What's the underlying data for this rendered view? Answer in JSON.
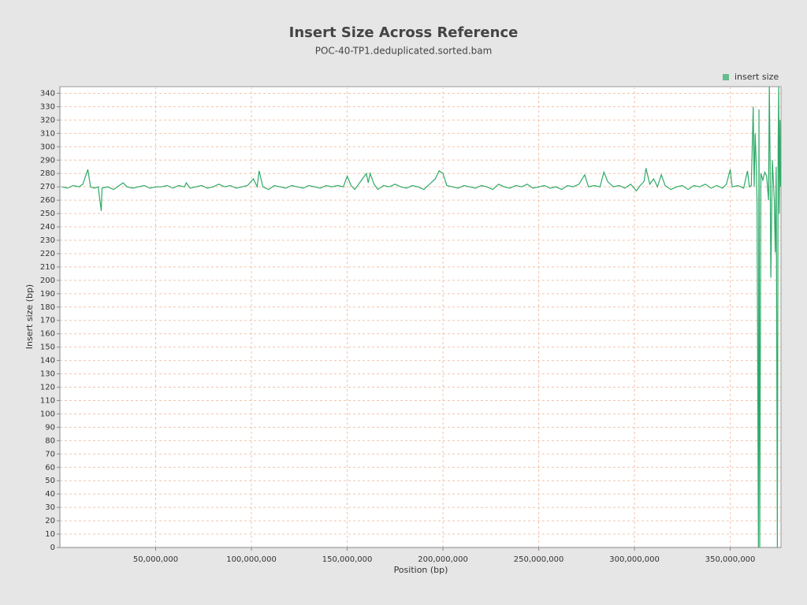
{
  "chart_data": {
    "type": "line",
    "title": "Insert Size Across Reference",
    "subtitle": "POC-40-TP1.deduplicated.sorted.bam",
    "x_label": "Position (bp)",
    "y_label": "Insert size (bp)",
    "xlim": [
      0,
      376500000
    ],
    "ylim": [
      0,
      345
    ],
    "xticks": [
      {
        "value": 50000000,
        "label": "50,000,000"
      },
      {
        "value": 100000000,
        "label": "100,000,000"
      },
      {
        "value": 150000000,
        "label": "150,000,000"
      },
      {
        "value": 200000000,
        "label": "200,000,000"
      },
      {
        "value": 250000000,
        "label": "250,000,000"
      },
      {
        "value": 300000000,
        "label": "300,000,000"
      },
      {
        "value": 350000000,
        "label": "350,000,000"
      }
    ],
    "yticks": [
      0,
      10,
      20,
      30,
      40,
      50,
      60,
      70,
      80,
      90,
      100,
      110,
      120,
      130,
      140,
      150,
      160,
      170,
      180,
      190,
      200,
      210,
      220,
      230,
      240,
      250,
      260,
      270,
      280,
      290,
      300,
      310,
      320,
      330,
      340
    ],
    "grid": true,
    "legend": "top-right",
    "x": [
      1000000,
      4000000,
      7000000,
      10000000,
      12000000,
      14600000,
      16000000,
      18000000,
      20000000,
      21600000,
      22000000,
      25000000,
      28000000,
      31000000,
      33000000,
      35000000,
      38000000,
      41000000,
      44000000,
      47000000,
      50000000,
      53000000,
      56000000,
      59000000,
      62000000,
      65000000,
      66000000,
      68000000,
      71000000,
      74000000,
      77000000,
      80000000,
      83000000,
      86000000,
      89000000,
      92000000,
      95000000,
      98000000,
      101000000,
      103000000,
      104000000,
      106000000,
      109000000,
      112000000,
      115000000,
      118000000,
      121000000,
      124000000,
      127000000,
      130000000,
      133000000,
      136000000,
      139000000,
      142000000,
      145000000,
      148000000,
      150000000,
      152000000,
      154000000,
      157000000,
      160000000,
      161000000,
      162000000,
      164000000,
      166000000,
      169000000,
      172000000,
      175000000,
      178000000,
      181000000,
      184000000,
      187000000,
      190000000,
      193000000,
      196000000,
      198000000,
      200000000,
      202000000,
      205000000,
      208000000,
      211000000,
      214000000,
      217000000,
      220000000,
      223000000,
      226000000,
      229000000,
      232000000,
      235000000,
      238000000,
      241000000,
      244000000,
      247000000,
      250000000,
      253000000,
      256000000,
      259000000,
      262000000,
      265000000,
      268000000,
      271000000,
      274000000,
      276000000,
      279000000,
      282000000,
      284000000,
      286000000,
      289000000,
      292000000,
      295000000,
      298000000,
      301000000,
      303000000,
      305000000,
      306000000,
      308000000,
      310000000,
      312000000,
      314000000,
      316000000,
      319000000,
      322000000,
      325000000,
      328000000,
      331000000,
      334000000,
      337000000,
      340000000,
      343000000,
      346000000,
      348000000,
      350000000,
      351000000,
      354000000,
      357000000,
      359000000,
      360000000,
      361000000,
      362000000,
      362500000,
      363000000,
      363500000,
      364000000,
      364700000,
      365000000,
      365400000,
      366000000,
      367000000,
      368000000,
      369000000,
      370000000,
      370400000,
      370800000,
      371200000,
      372000000,
      372500000,
      373000000,
      373500000,
      374000000,
      374600000,
      375000000,
      375300000,
      375600000,
      376000000,
      376300000
    ],
    "series": [
      {
        "name": "insert size",
        "color": "#2eaa68",
        "values": [
          270,
          269,
          271,
          270,
          272,
          283,
          270,
          269,
          270,
          252,
          269,
          270,
          268,
          271,
          273,
          270,
          269,
          270,
          271,
          269,
          270,
          270,
          271,
          269,
          271,
          270,
          273,
          269,
          270,
          271,
          269,
          270,
          272,
          270,
          271,
          269,
          270,
          271,
          276,
          270,
          282,
          270,
          268,
          271,
          270,
          269,
          271,
          270,
          269,
          271,
          270,
          269,
          271,
          270,
          271,
          270,
          278,
          271,
          268,
          274,
          280,
          273,
          280,
          272,
          268,
          271,
          270,
          272,
          270,
          269,
          271,
          270,
          268,
          272,
          276,
          282,
          280,
          271,
          270,
          269,
          271,
          270,
          269,
          271,
          270,
          268,
          272,
          270,
          269,
          271,
          270,
          272,
          269,
          270,
          271,
          269,
          270,
          268,
          271,
          270,
          272,
          279,
          270,
          271,
          270,
          281,
          274,
          270,
          271,
          269,
          272,
          267,
          271,
          274,
          284,
          272,
          276,
          270,
          279,
          271,
          268,
          270,
          271,
          268,
          271,
          270,
          272,
          269,
          271,
          269,
          272,
          283,
          270,
          271,
          269,
          282,
          270,
          271,
          330,
          270,
          310,
          290,
          260,
          0,
          328,
          0,
          280,
          275,
          281,
          278,
          260,
          345,
          290,
          202,
          290,
          275,
          260,
          221,
          285,
          0,
          300,
          345,
          250,
          320,
          270
        ]
      }
    ]
  }
}
